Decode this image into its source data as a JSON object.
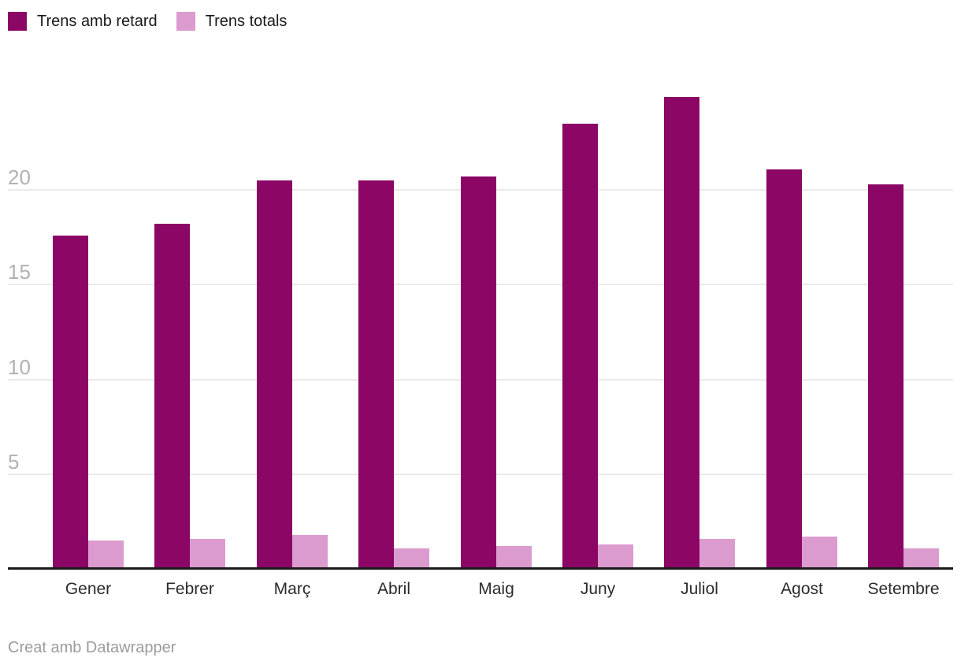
{
  "footer": {
    "credit": "Creat amb Datawrapper"
  },
  "chart_data": {
    "type": "bar",
    "title": "",
    "xlabel": "",
    "ylabel": "",
    "categories": [
      "Gener",
      "Febrer",
      "Març",
      "Abril",
      "Maig",
      "Juny",
      "Juliol",
      "Agost",
      "Setembre"
    ],
    "series": [
      {
        "name": "Trens amb retard",
        "color": "#8b0665",
        "values": [
          17.6,
          18.2,
          20.5,
          20.5,
          20.7,
          23.5,
          24.9,
          21.1,
          20.3
        ]
      },
      {
        "name": "Trens totals",
        "color": "#dc9bce",
        "values": [
          1.5,
          1.6,
          1.8,
          1.1,
          1.2,
          1.3,
          1.6,
          1.7,
          1.1
        ]
      }
    ],
    "yticks": [
      5,
      10,
      15,
      20
    ],
    "ylim": [
      0,
      25.9
    ],
    "grid": true,
    "legend_position": "top-left",
    "colors": {
      "grid_line": "#eaeaea",
      "axis_line": "#1a1a1a",
      "tick_label": "#b2b2b2",
      "category_label": "#2b2b2b",
      "legend_label": "#1a1a1a",
      "credit": "#9c9c9c",
      "background": "#ffffff"
    }
  }
}
